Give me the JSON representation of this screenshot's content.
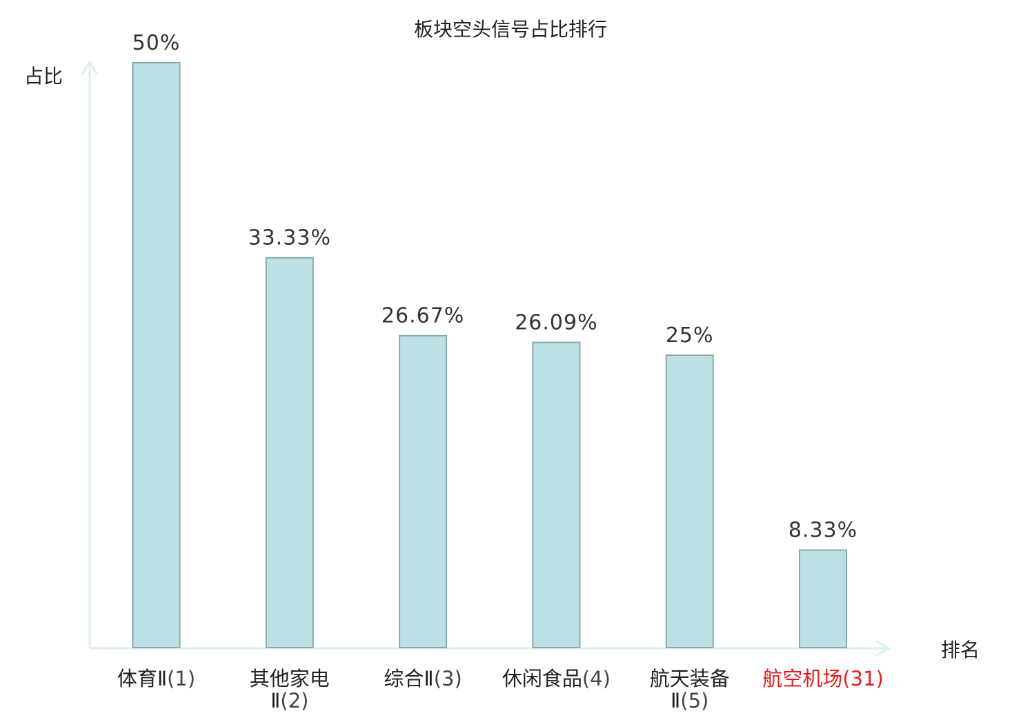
{
  "chart_data": {
    "type": "bar",
    "title": "板块空头信号占比排行",
    "ylabel": "占比",
    "xlabel": "排名",
    "ylim": [
      0,
      50
    ],
    "grid": false,
    "categories": [
      {
        "lines": [
          {
            "name": "体育Ⅱ",
            "rank": "(1)"
          }
        ],
        "highlight": false
      },
      {
        "lines": [
          {
            "name": "其他家电",
            "rank": ""
          },
          {
            "name": "Ⅱ",
            "rank": "(2)"
          }
        ],
        "highlight": false
      },
      {
        "lines": [
          {
            "name": "综合Ⅱ",
            "rank": "(3)"
          }
        ],
        "highlight": false
      },
      {
        "lines": [
          {
            "name": "休闲食品",
            "rank": "(4)"
          }
        ],
        "highlight": false
      },
      {
        "lines": [
          {
            "name": "航天装备",
            "rank": ""
          },
          {
            "name": "Ⅱ",
            "rank": "(5)"
          }
        ],
        "highlight": false
      },
      {
        "lines": [
          {
            "name": "航空机场",
            "rank": "(31)"
          }
        ],
        "highlight": true
      }
    ],
    "values": [
      50,
      33.33,
      26.67,
      26.09,
      25,
      8.33
    ],
    "value_labels": [
      "50%",
      "33.33%",
      "26.67%",
      "26.09%",
      "25%",
      "8.33%"
    ]
  },
  "colors": {
    "bar_fill": "#bce0e3",
    "bar_stroke": "#8aa9ad",
    "axis": "#dcefee",
    "text": "#222222",
    "rank_text": "#444444",
    "highlight": "#e02020"
  }
}
